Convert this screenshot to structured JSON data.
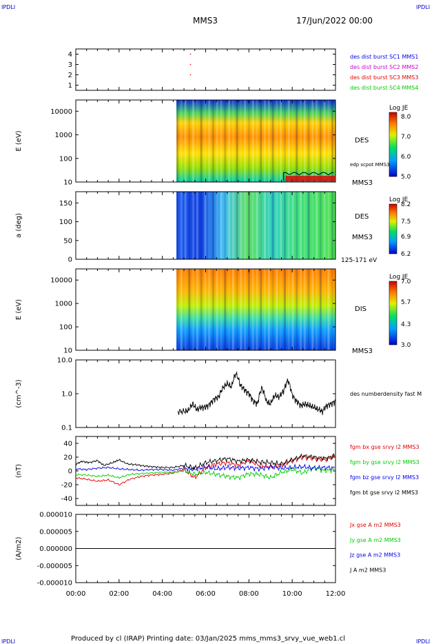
{
  "header": {
    "corner_label": "IPDLI",
    "title": "MMS3",
    "date": "17/Jun/2022 00:00"
  },
  "footer": {
    "credit": "Produced by cl (IRAP)   Printing date: 03/Jan/2025   mms_mms3_srvy_vue_web1.cl"
  },
  "colors": {
    "red": "#e00000",
    "green": "#00cc00",
    "blue": "#0000ee",
    "black": "#000000",
    "magenta": "#cc00cc",
    "label_blue": "#0000cc"
  },
  "chart_data": [
    {
      "type": "scatter",
      "id": "burst",
      "ylim": [
        0.5,
        4.5
      ],
      "yticks": [
        "1",
        "2",
        "3",
        "4"
      ],
      "ytick_values": [
        1,
        2,
        3,
        4
      ],
      "x": [
        5.3,
        5.3,
        5.3
      ],
      "y": [
        4,
        3,
        2
      ],
      "legend": [
        {
          "label": "des dist burst SC1 MMS1",
          "color": "#0000ee"
        },
        {
          "label": "des dist burst SC2 MMS2",
          "color": "#cc00cc"
        },
        {
          "label": "des dist burst SC3 MMS3",
          "color": "#e00000"
        },
        {
          "label": "des dist burst SC4 MMS4",
          "color": "#00cc00"
        }
      ]
    },
    {
      "type": "heatmap",
      "id": "des_energy",
      "ylabel": "E (eV)",
      "scale": "log",
      "ylim": [
        10,
        30000
      ],
      "yticks": [
        "10",
        "100",
        "1000",
        "10000"
      ],
      "ytick_values": [
        10,
        100,
        1000,
        10000
      ],
      "data_start_hour": 4.65,
      "colorbar": {
        "title": "Log JE",
        "ticks": [
          "8.0",
          "7.0",
          "6.0",
          "5.0"
        ],
        "tick_values": [
          8.0,
          7.0,
          6.0,
          5.0
        ],
        "range": [
          5.0,
          8.2
        ]
      },
      "label": "DES",
      "sc_label": "MMS3",
      "overlay_label": "edp scpot MMS3"
    },
    {
      "type": "heatmap",
      "id": "des_pitch",
      "ylabel": "a (deg)",
      "ylim": [
        0,
        180
      ],
      "yticks": [
        "0",
        "50",
        "100",
        "150"
      ],
      "ytick_values": [
        0,
        50,
        100,
        150
      ],
      "data_start_hour": 4.65,
      "colorbar": {
        "title": "Log JE",
        "ticks": [
          "8.2",
          "7.5",
          "6.9",
          "6.2"
        ],
        "tick_values": [
          8.2,
          7.5,
          6.9,
          6.2
        ],
        "range": [
          6.2,
          8.2
        ]
      },
      "label": "DES",
      "sc_label": "MMS3",
      "energy_range": "125-171 eV"
    },
    {
      "type": "heatmap",
      "id": "dis_energy",
      "ylabel": "E (eV)",
      "scale": "log",
      "ylim": [
        10,
        30000
      ],
      "yticks": [
        "10",
        "100",
        "1000",
        "10000"
      ],
      "ytick_values": [
        10,
        100,
        1000,
        10000
      ],
      "data_start_hour": 4.65,
      "colorbar": {
        "title": "Log JE",
        "ticks": [
          "7.0",
          "5.7",
          "4.3",
          "3.0"
        ],
        "tick_values": [
          7.0,
          5.7,
          4.3,
          3.0
        ],
        "range": [
          3.0,
          7.0
        ]
      },
      "label": "DIS",
      "sc_label": "MMS3"
    },
    {
      "type": "line",
      "id": "density",
      "ylabel": "(cm^-3)",
      "scale": "log",
      "ylim": [
        0.1,
        10
      ],
      "yticks": [
        "0.1",
        "1.0",
        "10.0"
      ],
      "ytick_values": [
        0.1,
        1.0,
        10.0
      ],
      "legend": [
        {
          "label": "des numberdensity fast M",
          "color": "#000000"
        }
      ],
      "series": [
        {
          "color": "#000000",
          "x": [
            4.7,
            5.0,
            5.2,
            5.4,
            5.6,
            5.8,
            6.0,
            6.2,
            6.4,
            6.6,
            6.8,
            7.0,
            7.2,
            7.4,
            7.6,
            7.8,
            8.0,
            8.2,
            8.4,
            8.6,
            8.8,
            9.0,
            9.2,
            9.4,
            9.6,
            9.8,
            10.0,
            10.2,
            10.4,
            10.6,
            10.8,
            11.0,
            11.2,
            11.4,
            11.6,
            11.8,
            12.0
          ],
          "y": [
            0.3,
            0.3,
            0.32,
            0.5,
            0.34,
            0.4,
            0.4,
            0.5,
            0.7,
            0.8,
            1.5,
            2.0,
            1.6,
            4.0,
            1.8,
            1.3,
            1.0,
            0.6,
            0.5,
            1.5,
            0.6,
            0.5,
            0.9,
            0.8,
            1.2,
            2.5,
            0.9,
            0.6,
            0.45,
            0.5,
            0.45,
            0.4,
            0.35,
            0.3,
            0.45,
            0.5,
            0.6
          ]
        }
      ]
    },
    {
      "type": "line",
      "id": "fgm",
      "ylabel": "(nT)",
      "ylim": [
        -50,
        50
      ],
      "yticks": [
        "-40",
        "-20",
        "0",
        "20",
        "40"
      ],
      "ytick_values": [
        -40,
        -20,
        0,
        20,
        40
      ],
      "legend": [
        {
          "label": "fgm bx gse srvy l2 MMS3",
          "color": "#e00000"
        },
        {
          "label": "fgm by gse srvy l2 MMS3",
          "color": "#00cc00"
        },
        {
          "label": "fgm bz gse srvy l2 MMS3",
          "color": "#0000ee"
        },
        {
          "label": "fgm bt gse srvy l2 MMS3",
          "color": "#000000"
        }
      ],
      "series": [
        {
          "name": "fgm bx gse srvy l2 MMS3",
          "color": "#e00000",
          "x": [
            0,
            0.5,
            1,
            1.5,
            2,
            2.5,
            3,
            3.5,
            4,
            4.5,
            5,
            5.5,
            6,
            6.5,
            7,
            7.5,
            8,
            8.5,
            9,
            9.5,
            10,
            10.5,
            11,
            11.5,
            12
          ],
          "y": [
            -10,
            -12,
            -15,
            -13,
            -20,
            -12,
            -8,
            -6,
            -5,
            -3,
            2,
            -10,
            5,
            10,
            12,
            8,
            15,
            8,
            6,
            8,
            15,
            20,
            18,
            16,
            22
          ]
        },
        {
          "name": "fgm by gse srvy l2 MMS3",
          "color": "#00cc00",
          "x": [
            0,
            0.5,
            1,
            1.5,
            2,
            2.5,
            3,
            3.5,
            4,
            4.5,
            5,
            5.5,
            6,
            6.5,
            7,
            7.5,
            8,
            8.5,
            9,
            9.5,
            10,
            10.5,
            11,
            11.5,
            12
          ],
          "y": [
            -5,
            -6,
            -8,
            -6,
            -10,
            -5,
            -4,
            -3,
            -2,
            -2,
            0,
            -5,
            -2,
            -5,
            -8,
            -10,
            -4,
            -5,
            -10,
            -2,
            2,
            -3,
            5,
            0,
            2
          ]
        },
        {
          "name": "fgm bz gse srvy l2 MMS3",
          "color": "#0000ee",
          "x": [
            0,
            0.5,
            1,
            1.5,
            2,
            2.5,
            3,
            3.5,
            4,
            4.5,
            5,
            5.5,
            6,
            6.5,
            7,
            7.5,
            8,
            8.5,
            9,
            9.5,
            10,
            10.5,
            11,
            11.5,
            12
          ],
          "y": [
            3,
            2,
            4,
            5,
            3,
            2,
            1,
            2,
            2,
            1,
            4,
            2,
            6,
            3,
            5,
            4,
            5,
            3,
            6,
            4,
            5,
            6,
            4,
            5,
            4
          ]
        },
        {
          "name": "fgm bt gse srvy l2 MMS3",
          "color": "#000000",
          "x": [
            0,
            0.3,
            0.6,
            1,
            1.3,
            1.7,
            2,
            2.4,
            2.8,
            3.2,
            3.6,
            4,
            4.5,
            5,
            5.5,
            6,
            6.5,
            7,
            7.5,
            8,
            8.5,
            9,
            9.5,
            10,
            10.5,
            11,
            11.5,
            12
          ],
          "y": [
            10,
            14,
            12,
            15,
            8,
            12,
            16,
            10,
            9,
            7,
            6,
            5,
            5,
            8,
            4,
            12,
            15,
            18,
            14,
            16,
            13,
            12,
            10,
            16,
            22,
            20,
            18,
            22
          ]
        }
      ]
    },
    {
      "type": "line",
      "id": "current",
      "ylabel": "(A/m2)",
      "ylim": [
        -1e-05,
        1e-05
      ],
      "yticks": [
        "-0.000010",
        "-0.000005",
        "0.000000",
        "0.000005",
        "0.000010"
      ],
      "ytick_values": [
        -1e-05,
        -5e-06,
        0,
        5e-06,
        1e-05
      ],
      "xticks": [
        "00:00",
        "02:00",
        "04:00",
        "06:00",
        "08:00",
        "10:00",
        "12:00"
      ],
      "xtick_values": [
        0,
        2,
        4,
        6,
        8,
        10,
        12
      ],
      "legend": [
        {
          "label": "Jx gse A m2 MMS3",
          "color": "#e00000"
        },
        {
          "label": "Jy gse A m2 MMS3",
          "color": "#00cc00"
        },
        {
          "label": "Jz gse A m2 MMS3",
          "color": "#0000ee"
        },
        {
          "label": "J A m2 MMS3",
          "color": "#000000"
        }
      ],
      "series": [
        {
          "name": "J A m2 MMS3",
          "color": "#000000",
          "x": [
            0,
            12
          ],
          "y": [
            0,
            0
          ]
        }
      ]
    }
  ]
}
